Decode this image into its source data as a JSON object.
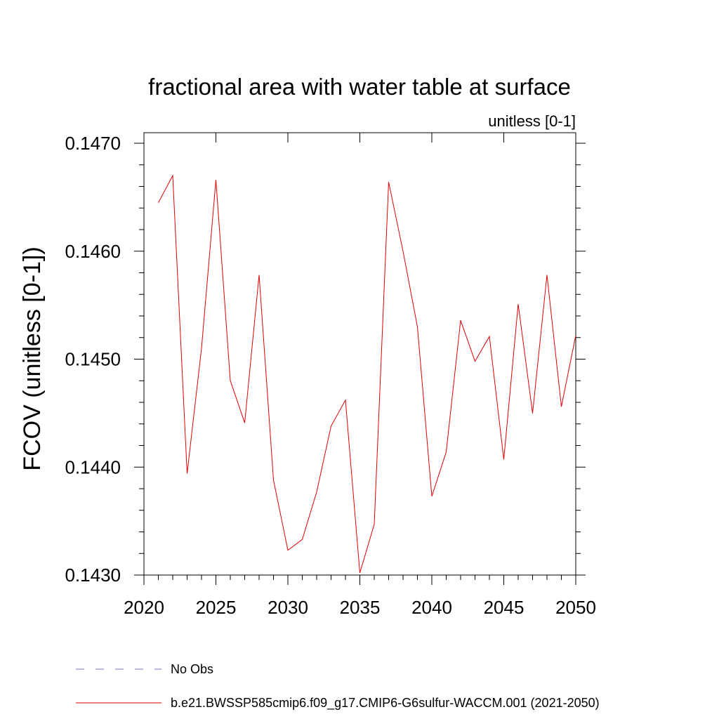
{
  "chart_data": {
    "type": "line",
    "title": "fractional area with water table at surface",
    "subtitle": "unitless [0-1]",
    "ylabel": "FCOV  (unitless [0-1])",
    "xlabel": "",
    "xlim": [
      2020,
      2050
    ],
    "ylim": [
      0.143,
      0.147
    ],
    "x_ticks": [
      2020,
      2025,
      2030,
      2035,
      2040,
      2045,
      2050
    ],
    "x_tick_labels": [
      "2020",
      "2025",
      "2030",
      "2035",
      "2040",
      "2045",
      "2050"
    ],
    "y_ticks": [
      0.143,
      0.144,
      0.145,
      0.146,
      0.147
    ],
    "y_tick_labels": [
      "0.1430",
      "0.1440",
      "0.1450",
      "0.1460",
      "0.1470"
    ],
    "grid": false,
    "legend_position": "bottom",
    "series": [
      {
        "name": "b.e21.BWSSP585cmip6.f09_g17.CMIP6-G6sulfur-WACCM.001 (2021-2050)",
        "color": "#e00000",
        "x": [
          2021,
          2022,
          2023,
          2024,
          2025,
          2026,
          2027,
          2028,
          2029,
          2030,
          2031,
          2032,
          2033,
          2034,
          2035,
          2036,
          2037,
          2038,
          2039,
          2040,
          2041,
          2042,
          2043,
          2044,
          2045,
          2046,
          2047,
          2048,
          2049,
          2050
        ],
        "values": [
          0.14645,
          0.1467,
          0.14394,
          0.1451,
          0.14666,
          0.1448,
          0.14441,
          0.14578,
          0.14388,
          0.14323,
          0.14333,
          0.14377,
          0.14438,
          0.14462,
          0.14302,
          0.14347,
          0.14664,
          0.146,
          0.1453,
          0.14373,
          0.14414,
          0.14536,
          0.14498,
          0.14521,
          0.14407,
          0.14551,
          0.1445,
          0.14578,
          0.14456,
          0.14522
        ]
      }
    ],
    "legend": [
      {
        "label": "No Obs",
        "color": "#7b6fb0",
        "style": "dashed"
      },
      {
        "label": "b.e21.BWSSP585cmip6.f09_g17.CMIP6-G6sulfur-WACCM.001 (2021-2050)",
        "color": "#e00000",
        "style": "solid"
      }
    ]
  }
}
